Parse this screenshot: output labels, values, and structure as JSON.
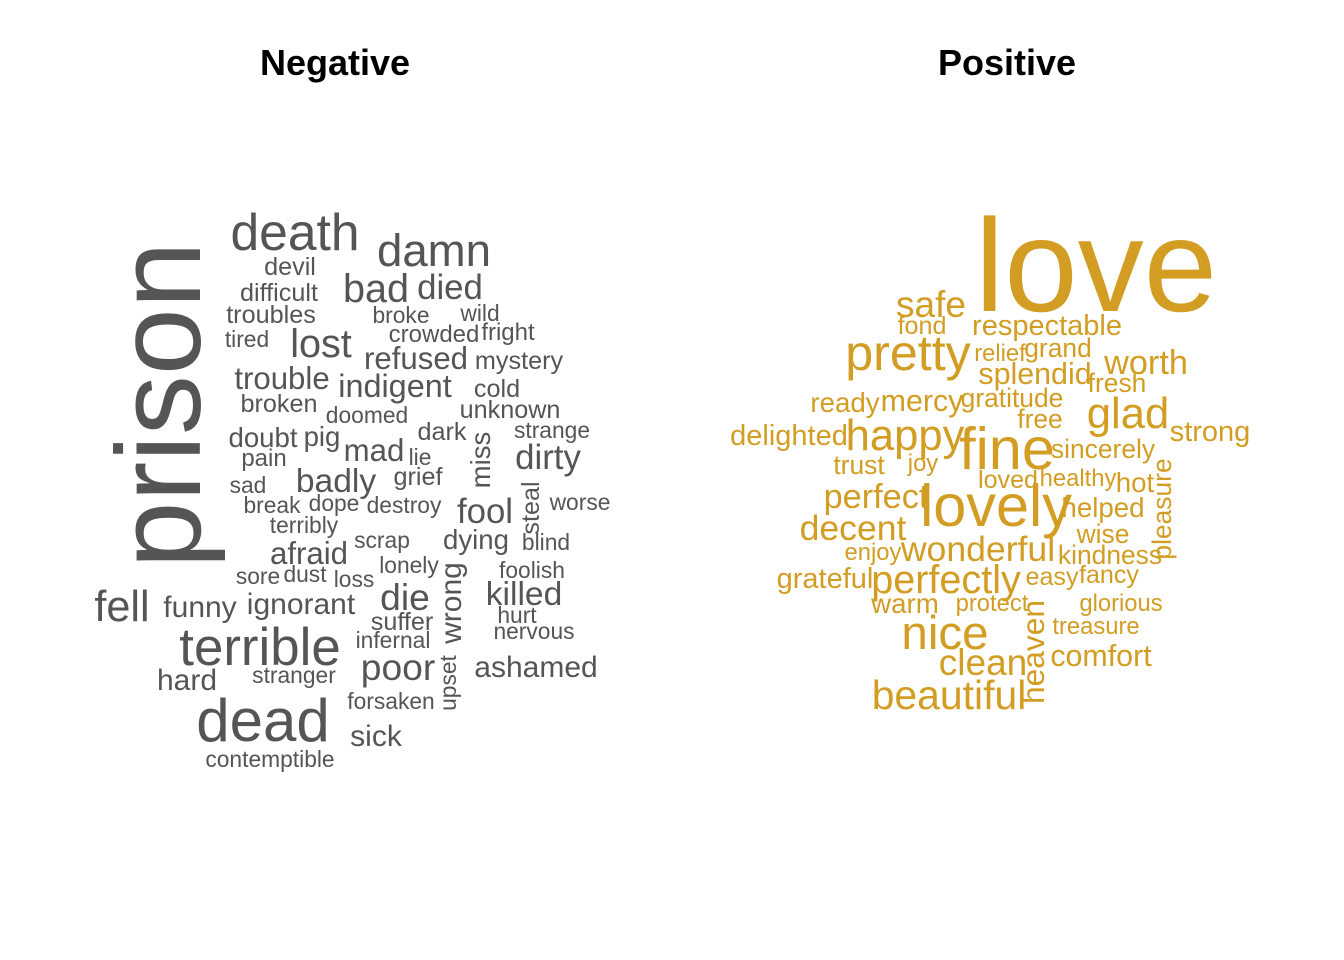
{
  "chart_data": {
    "type": "wordcloud",
    "panels": [
      {
        "title": "Negative",
        "color": "#555555",
        "words": [
          {
            "text": "prison",
            "weight": 100,
            "rotated": true
          },
          {
            "text": "dead",
            "weight": 50
          },
          {
            "text": "death",
            "weight": 43
          },
          {
            "text": "terrible",
            "weight": 44
          },
          {
            "text": "damn",
            "weight": 38
          },
          {
            "text": "bad",
            "weight": 33
          },
          {
            "text": "lost",
            "weight": 33
          },
          {
            "text": "fell",
            "weight": 36
          },
          {
            "text": "die",
            "weight": 31
          },
          {
            "text": "poor",
            "weight": 31
          },
          {
            "text": "died",
            "weight": 29
          },
          {
            "text": "fool",
            "weight": 29
          },
          {
            "text": "dirty",
            "weight": 29
          },
          {
            "text": "badly",
            "weight": 28
          },
          {
            "text": "killed",
            "weight": 28
          },
          {
            "text": "indigent",
            "weight": 27
          },
          {
            "text": "trouble",
            "weight": 26
          },
          {
            "text": "mad",
            "weight": 26
          },
          {
            "text": "refused",
            "weight": 26
          },
          {
            "text": "afraid",
            "weight": 26
          },
          {
            "text": "ignorant",
            "weight": 25
          },
          {
            "text": "funny",
            "weight": 25
          },
          {
            "text": "ashamed",
            "weight": 25
          },
          {
            "text": "hard",
            "weight": 25
          },
          {
            "text": "wrong",
            "weight": 25,
            "rotated": true
          },
          {
            "text": "sick",
            "weight": 25
          },
          {
            "text": "doubt",
            "weight": 23
          },
          {
            "text": "pig",
            "weight": 23
          },
          {
            "text": "dying",
            "weight": 23
          },
          {
            "text": "miss",
            "weight": 23,
            "rotated": true
          },
          {
            "text": "broken",
            "weight": 21
          },
          {
            "text": "troubles",
            "weight": 21
          },
          {
            "text": "difficult",
            "weight": 21
          },
          {
            "text": "devil",
            "weight": 21
          },
          {
            "text": "mystery",
            "weight": 21
          },
          {
            "text": "unknown",
            "weight": 21
          },
          {
            "text": "cold",
            "weight": 21
          },
          {
            "text": "crowded",
            "weight": 20
          },
          {
            "text": "dark",
            "weight": 21
          },
          {
            "text": "grief",
            "weight": 21
          },
          {
            "text": "suffer",
            "weight": 21
          },
          {
            "text": "steal",
            "weight": 21,
            "rotated": true
          },
          {
            "text": "pain",
            "weight": 20
          },
          {
            "text": "fright",
            "weight": 20
          },
          {
            "text": "broke",
            "weight": 19
          },
          {
            "text": "wild",
            "weight": 19
          },
          {
            "text": "tired",
            "weight": 19
          },
          {
            "text": "doomed",
            "weight": 19
          },
          {
            "text": "strange",
            "weight": 19
          },
          {
            "text": "lie",
            "weight": 19
          },
          {
            "text": "sad",
            "weight": 19
          },
          {
            "text": "break",
            "weight": 19
          },
          {
            "text": "dope",
            "weight": 19
          },
          {
            "text": "destroy",
            "weight": 19
          },
          {
            "text": "worse",
            "weight": 19
          },
          {
            "text": "terribly",
            "weight": 19
          },
          {
            "text": "scrap",
            "weight": 19
          },
          {
            "text": "blind",
            "weight": 19
          },
          {
            "text": "lonely",
            "weight": 19
          },
          {
            "text": "foolish",
            "weight": 19
          },
          {
            "text": "sore",
            "weight": 19
          },
          {
            "text": "dust",
            "weight": 19
          },
          {
            "text": "loss",
            "weight": 19
          },
          {
            "text": "hurt",
            "weight": 19
          },
          {
            "text": "nervous",
            "weight": 19
          },
          {
            "text": "infernal",
            "weight": 19
          },
          {
            "text": "stranger",
            "weight": 19
          },
          {
            "text": "upset",
            "weight": 19,
            "rotated": true
          },
          {
            "text": "forsaken",
            "weight": 19
          },
          {
            "text": "contemptible",
            "weight": 19
          }
        ]
      },
      {
        "title": "Positive",
        "color": "#d29d22",
        "words": [
          {
            "text": "love",
            "weight": 100
          },
          {
            "text": "fine",
            "weight": 45
          },
          {
            "text": "pretty",
            "weight": 38
          },
          {
            "text": "lovely",
            "weight": 45
          },
          {
            "text": "glad",
            "weight": 33
          },
          {
            "text": "nice",
            "weight": 36
          },
          {
            "text": "happy",
            "weight": 33
          },
          {
            "text": "beautiful",
            "weight": 31
          },
          {
            "text": "perfectly",
            "weight": 30
          },
          {
            "text": "safe",
            "weight": 28
          },
          {
            "text": "clean",
            "weight": 28
          },
          {
            "text": "decent",
            "weight": 27
          },
          {
            "text": "wonderful",
            "weight": 27
          },
          {
            "text": "worth",
            "weight": 26
          },
          {
            "text": "perfect",
            "weight": 26
          },
          {
            "text": "heaven",
            "weight": 24,
            "rotated": true
          },
          {
            "text": "splendid",
            "weight": 23
          },
          {
            "text": "mercy",
            "weight": 23
          },
          {
            "text": "comfort",
            "weight": 23
          },
          {
            "text": "respectable",
            "weight": 22
          },
          {
            "text": "delighted",
            "weight": 22
          },
          {
            "text": "grateful",
            "weight": 22
          },
          {
            "text": "strong",
            "weight": 22
          },
          {
            "text": "ready",
            "weight": 21
          },
          {
            "text": "hot",
            "weight": 21
          },
          {
            "text": "helped",
            "weight": 21
          },
          {
            "text": "warm",
            "weight": 21
          },
          {
            "text": "kindness",
            "weight": 20
          },
          {
            "text": "sincerely",
            "weight": 20
          },
          {
            "text": "grand",
            "weight": 20
          },
          {
            "text": "gratitude",
            "weight": 20
          },
          {
            "text": "fresh",
            "weight": 20
          },
          {
            "text": "pleasure",
            "weight": 20,
            "rotated": true
          },
          {
            "text": "trust",
            "weight": 20
          },
          {
            "text": "free",
            "weight": 20
          },
          {
            "text": "wise",
            "weight": 20
          },
          {
            "text": "easy",
            "weight": 19
          },
          {
            "text": "fancy",
            "weight": 19
          },
          {
            "text": "fond",
            "weight": 19
          },
          {
            "text": "relief",
            "weight": 18
          },
          {
            "text": "joy",
            "weight": 18
          },
          {
            "text": "loved",
            "weight": 19
          },
          {
            "text": "healthy",
            "weight": 18
          },
          {
            "text": "enjoy",
            "weight": 18
          },
          {
            "text": "protect",
            "weight": 18
          },
          {
            "text": "glorious",
            "weight": 18
          },
          {
            "text": "treasure",
            "weight": 18
          }
        ]
      }
    ]
  }
}
